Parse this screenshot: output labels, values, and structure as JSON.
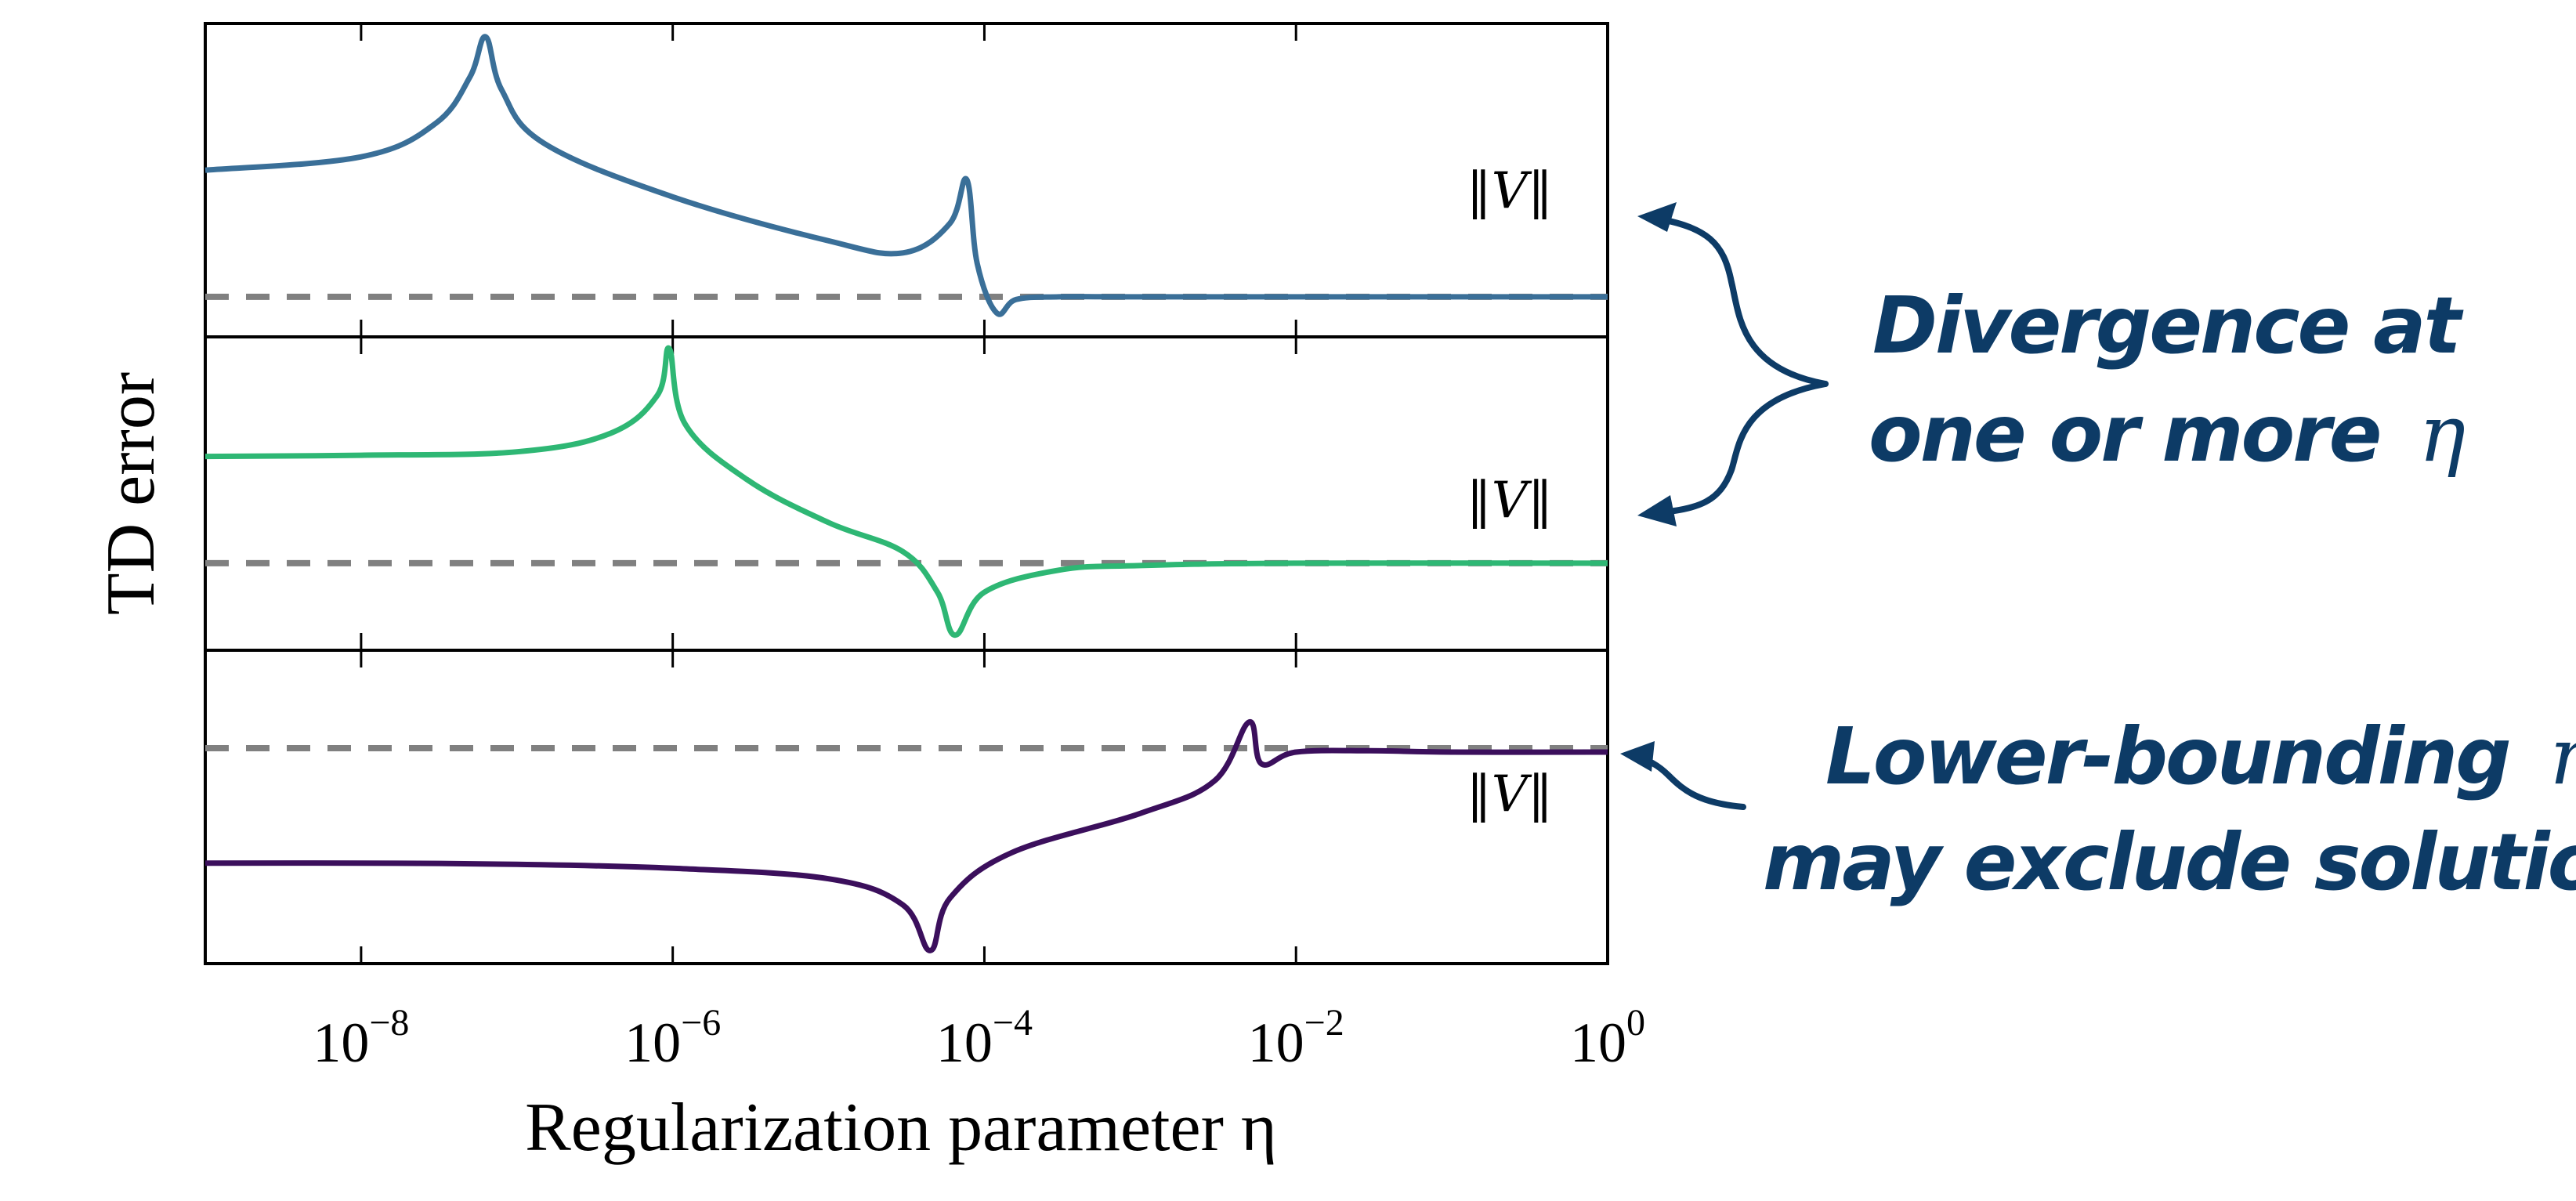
{
  "chart_data": {
    "type": "line",
    "xscale": "log",
    "xlim": [
      1e-09,
      1
    ],
    "xticks": [
      1e-08,
      1e-06,
      0.0001,
      0.01,
      1
    ],
    "xtick_labels": [
      {
        "base": "10",
        "exp": "−8"
      },
      {
        "base": "10",
        "exp": "−6"
      },
      {
        "base": "10",
        "exp": "−4"
      },
      {
        "base": "10",
        "exp": "−2"
      },
      {
        "base": "10",
        "exp": "0"
      }
    ],
    "xlabel": "Regularization parameter η",
    "ylabel": "TD error",
    "grid": false,
    "panels": [
      {
        "color": "#3a6f98",
        "reference_label": "‖V‖",
        "reference_level": 0,
        "ylim": [
          -0.3,
          2.05
        ],
        "series": {
          "x": [
            1e-09,
            1e-08,
            3e-08,
            5e-08,
            6.3e-08,
            8e-08,
            1.5e-07,
            1e-06,
            1e-05,
            3e-05,
            6e-05,
            7.7e-05,
            9e-05,
            0.00012,
            0.00016,
            0.0003,
            0.001,
            0.01,
            1
          ],
          "y": [
            0.95,
            1.05,
            1.3,
            1.65,
            1.95,
            1.55,
            1.15,
            0.75,
            0.42,
            0.33,
            0.55,
            0.88,
            0.25,
            -0.12,
            -0.02,
            0.0,
            0.0,
            0.0,
            0.0
          ]
        }
      },
      {
        "color": "#2eb774",
        "reference_label": "‖V‖",
        "reference_level": 0,
        "ylim": [
          -0.75,
          1.95
        ],
        "series": {
          "x": [
            1e-09,
            1e-08,
            1e-07,
            4e-07,
            8e-07,
            9.5e-07,
            1.2e-06,
            3e-06,
            1e-05,
            3e-05,
            5e-05,
            6.5e-05,
            0.0001,
            0.0003,
            0.001,
            0.01,
            1
          ],
          "y": [
            0.92,
            0.93,
            0.96,
            1.12,
            1.45,
            1.85,
            1.2,
            0.72,
            0.35,
            0.1,
            -0.25,
            -0.62,
            -0.25,
            -0.06,
            -0.02,
            0.0,
            0.0
          ]
        }
      },
      {
        "color": "#3b0f5c",
        "reference_label": "‖V‖",
        "reference_level": 0,
        "ylim": [
          -1.65,
          0.75
        ],
        "series": {
          "x": [
            1e-09,
            1e-08,
            1e-07,
            1e-06,
            1e-05,
            3e-05,
            4.5e-05,
            6e-05,
            0.00015,
            0.001,
            0.003,
            0.005,
            0.006,
            0.01,
            0.03,
            0.1,
            1
          ],
          "y": [
            -0.88,
            -0.88,
            -0.89,
            -0.92,
            -1.0,
            -1.2,
            -1.55,
            -1.15,
            -0.8,
            -0.5,
            -0.25,
            0.2,
            -0.12,
            -0.03,
            -0.02,
            -0.03,
            -0.03
          ]
        }
      }
    ]
  },
  "annotations": [
    {
      "text": "Divergence at",
      "text2": "one or more",
      "symbol": "η"
    },
    {
      "text": "Lower-bounding",
      "symbol": "η",
      "text2": "may exclude solutions"
    }
  ],
  "colors": {
    "annotation": "#0d3b66",
    "reference_line": "#808080"
  }
}
